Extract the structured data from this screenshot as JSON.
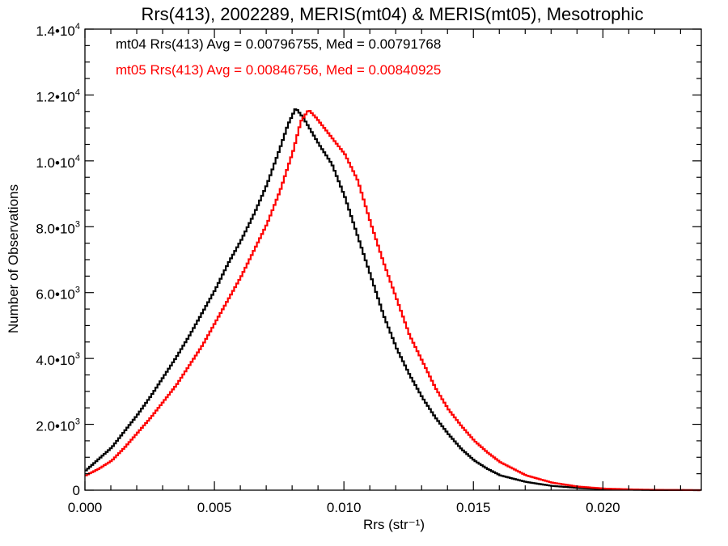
{
  "chart_data": {
    "type": "line",
    "style": "histogram-step",
    "title": "Rrs(413), 2002289, MERIS(mt04) & MERIS(mt05), Mesotrophic",
    "xlabel": "Rrs (str⁻¹)",
    "ylabel": "Number of Observations",
    "xlim": [
      0,
      0.0238
    ],
    "ylim": [
      0,
      14000
    ],
    "x_ticks": [
      {
        "value": 0.0,
        "label": "0.000"
      },
      {
        "value": 0.005,
        "label": "0.005"
      },
      {
        "value": 0.01,
        "label": "0.010"
      },
      {
        "value": 0.015,
        "label": "0.015"
      },
      {
        "value": 0.02,
        "label": "0.020"
      }
    ],
    "y_ticks": [
      {
        "value": 0,
        "mantissa": "0",
        "exponent": ""
      },
      {
        "value": 2000,
        "mantissa": "2.0•10",
        "exponent": "3"
      },
      {
        "value": 4000,
        "mantissa": "4.0•10",
        "exponent": "3"
      },
      {
        "value": 6000,
        "mantissa": "6.0•10",
        "exponent": "3"
      },
      {
        "value": 8000,
        "mantissa": "8.0•10",
        "exponent": "3"
      },
      {
        "value": 10000,
        "mantissa": "1.0•10",
        "exponent": "4"
      },
      {
        "value": 12000,
        "mantissa": "1.2•10",
        "exponent": "4"
      },
      {
        "value": 14000,
        "mantissa": "1.4•10",
        "exponent": "4"
      }
    ],
    "annotations": [
      {
        "text": "mt04 Rrs(413) Avg = 0.00796755, Med = 0.00791768",
        "color": "#000000"
      },
      {
        "text": "mt05 Rrs(413) Avg = 0.00846756, Med = 0.00840925",
        "color": "#ff0000"
      }
    ],
    "series": [
      {
        "color": "#000000",
        "points": [
          [
            0.0,
            600
          ],
          [
            0.0005,
            950
          ],
          [
            0.001,
            1300
          ],
          [
            0.0015,
            1800
          ],
          [
            0.002,
            2300
          ],
          [
            0.0025,
            2850
          ],
          [
            0.003,
            3450
          ],
          [
            0.0035,
            4050
          ],
          [
            0.004,
            4700
          ],
          [
            0.0045,
            5400
          ],
          [
            0.005,
            6100
          ],
          [
            0.0055,
            6900
          ],
          [
            0.006,
            7600
          ],
          [
            0.0065,
            8400
          ],
          [
            0.007,
            9300
          ],
          [
            0.0075,
            10400
          ],
          [
            0.0078,
            11100
          ],
          [
            0.0081,
            11600
          ],
          [
            0.0084,
            11300
          ],
          [
            0.0087,
            10900
          ],
          [
            0.009,
            10500
          ],
          [
            0.0095,
            9900
          ],
          [
            0.01,
            8900
          ],
          [
            0.0105,
            7700
          ],
          [
            0.011,
            6500
          ],
          [
            0.0115,
            5300
          ],
          [
            0.012,
            4300
          ],
          [
            0.0125,
            3500
          ],
          [
            0.013,
            2800
          ],
          [
            0.0135,
            2200
          ],
          [
            0.014,
            1700
          ],
          [
            0.0145,
            1250
          ],
          [
            0.015,
            900
          ],
          [
            0.0155,
            650
          ],
          [
            0.016,
            450
          ],
          [
            0.017,
            250
          ],
          [
            0.018,
            130
          ],
          [
            0.019,
            70
          ],
          [
            0.02,
            30
          ],
          [
            0.021,
            15
          ],
          [
            0.022,
            5
          ],
          [
            0.0238,
            0
          ]
        ]
      },
      {
        "color": "#ff0000",
        "points": [
          [
            0.0,
            450
          ],
          [
            0.0005,
            650
          ],
          [
            0.001,
            900
          ],
          [
            0.0015,
            1300
          ],
          [
            0.002,
            1750
          ],
          [
            0.0025,
            2200
          ],
          [
            0.003,
            2700
          ],
          [
            0.0035,
            3200
          ],
          [
            0.004,
            3800
          ],
          [
            0.0045,
            4400
          ],
          [
            0.005,
            5100
          ],
          [
            0.0055,
            5800
          ],
          [
            0.006,
            6500
          ],
          [
            0.0065,
            7300
          ],
          [
            0.007,
            8100
          ],
          [
            0.0075,
            9100
          ],
          [
            0.008,
            10300
          ],
          [
            0.0083,
            11200
          ],
          [
            0.0086,
            11550
          ],
          [
            0.0089,
            11300
          ],
          [
            0.0092,
            11000
          ],
          [
            0.0095,
            10700
          ],
          [
            0.01,
            10200
          ],
          [
            0.0105,
            9400
          ],
          [
            0.011,
            8100
          ],
          [
            0.0115,
            6900
          ],
          [
            0.012,
            5800
          ],
          [
            0.0125,
            4700
          ],
          [
            0.013,
            3900
          ],
          [
            0.0135,
            3100
          ],
          [
            0.014,
            2450
          ],
          [
            0.0145,
            1950
          ],
          [
            0.015,
            1500
          ],
          [
            0.0155,
            1150
          ],
          [
            0.016,
            850
          ],
          [
            0.017,
            450
          ],
          [
            0.018,
            230
          ],
          [
            0.019,
            110
          ],
          [
            0.02,
            50
          ],
          [
            0.021,
            25
          ],
          [
            0.022,
            10
          ],
          [
            0.0238,
            0
          ]
        ]
      }
    ]
  }
}
